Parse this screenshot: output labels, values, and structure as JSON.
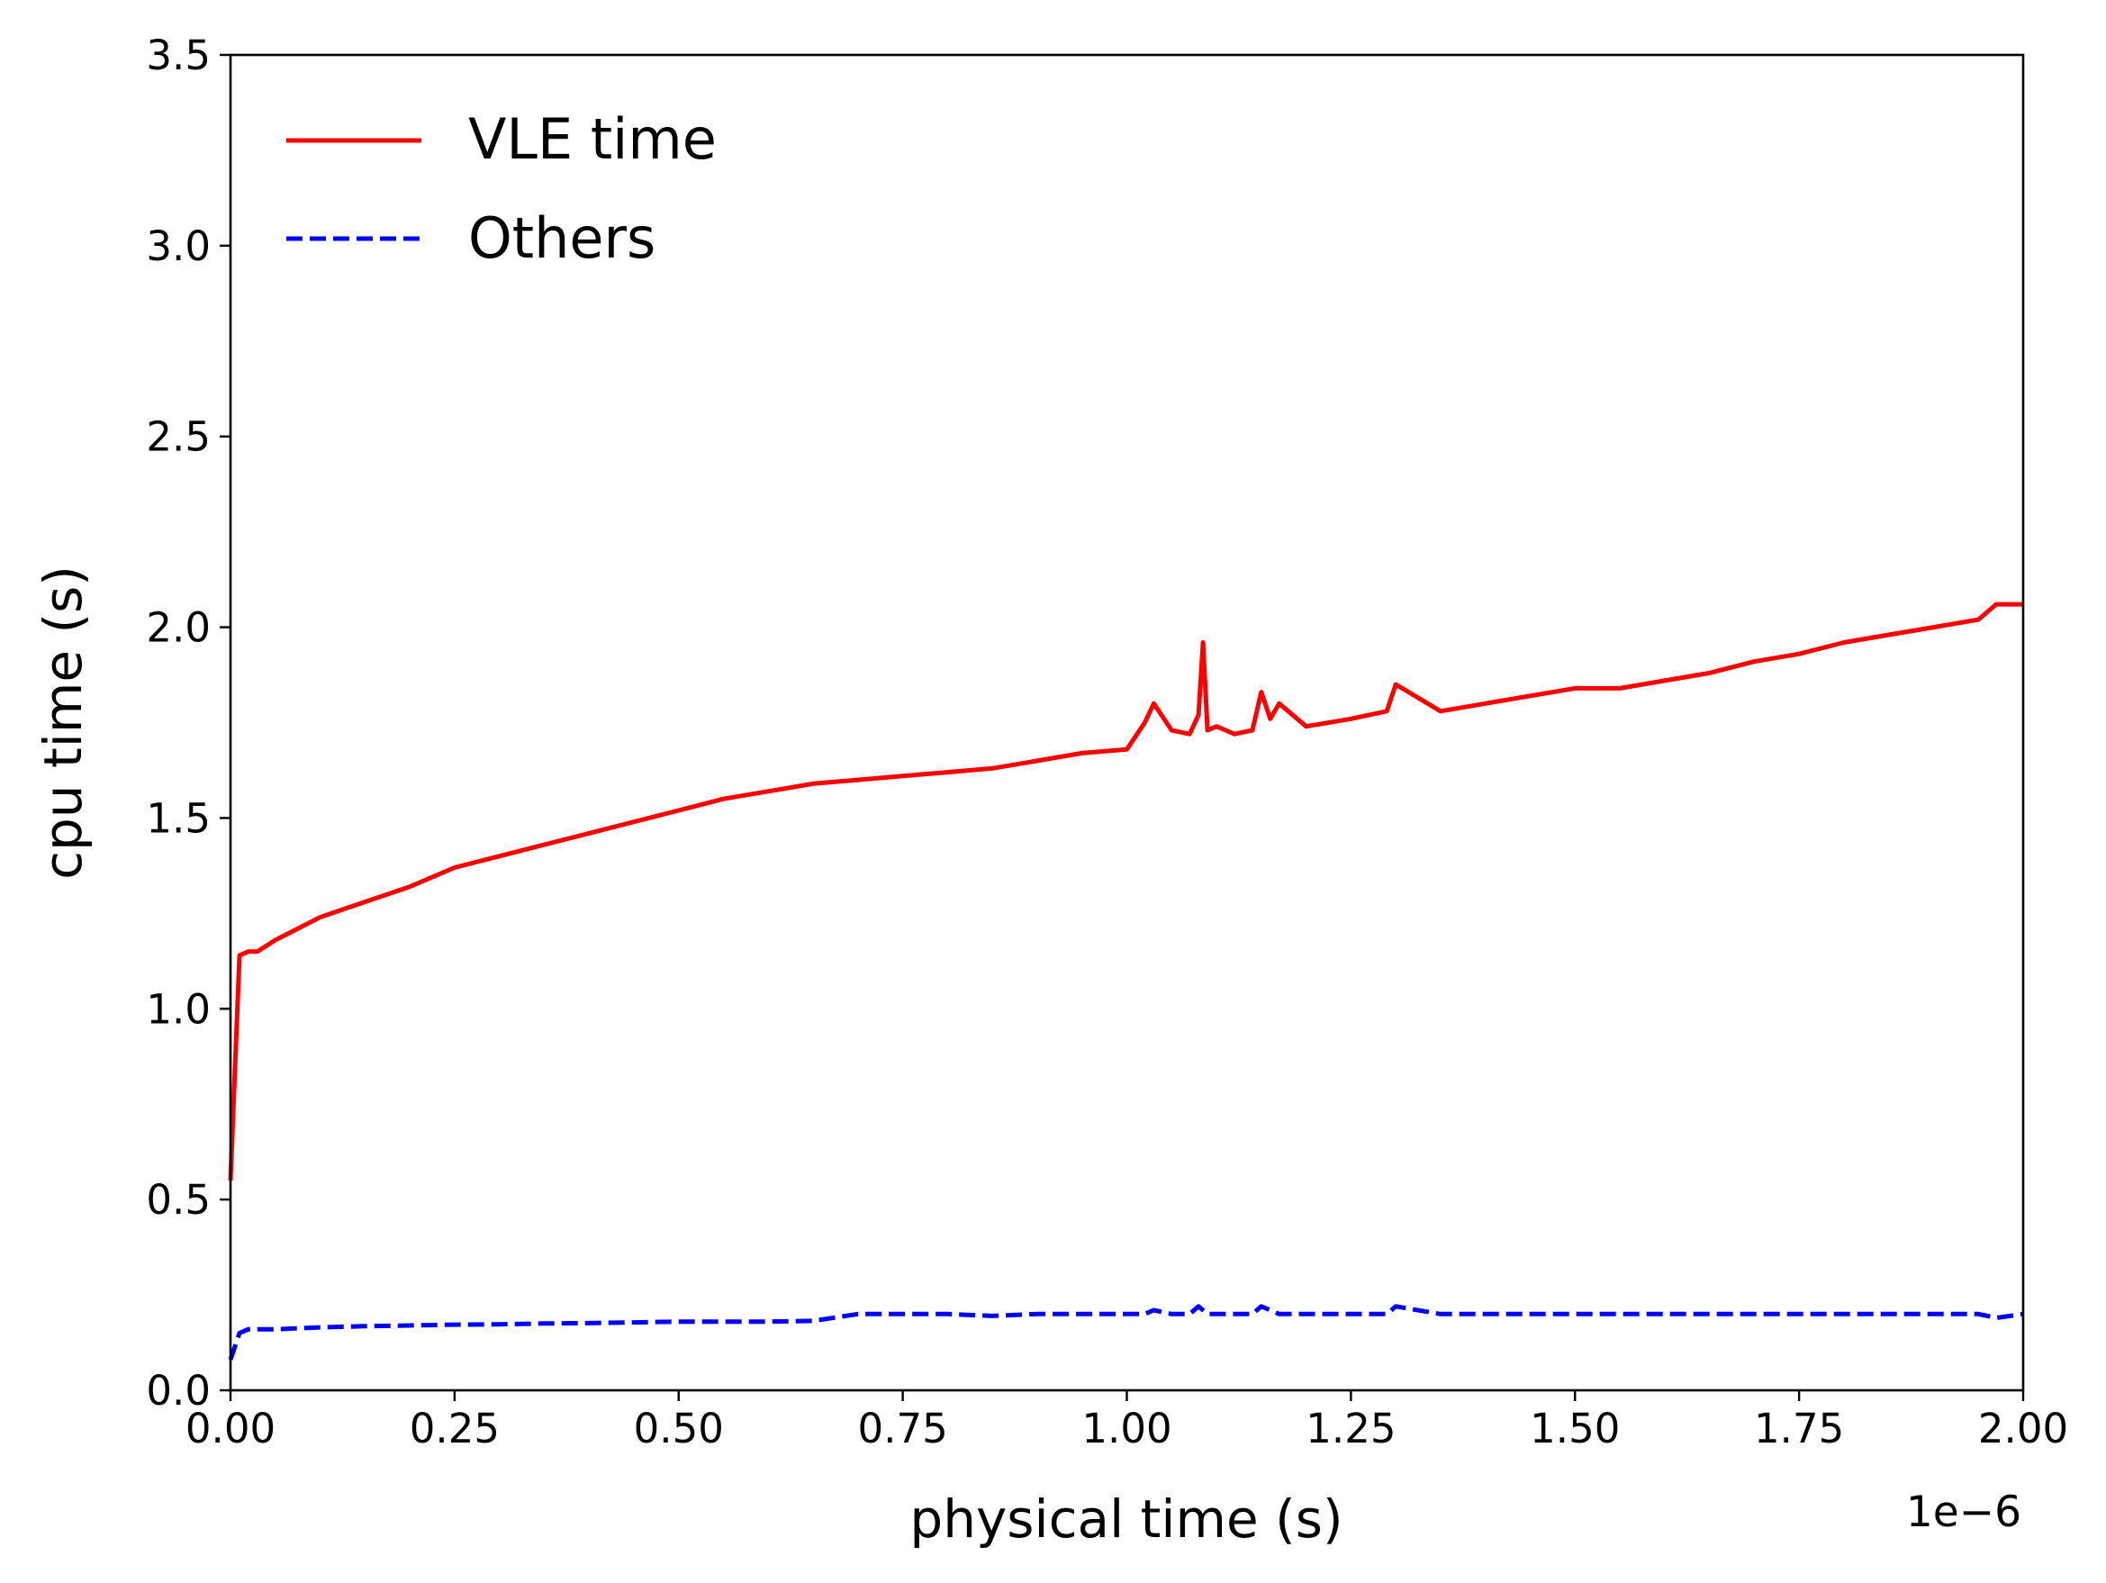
{
  "chart_data": {
    "type": "line",
    "title": "",
    "xlabel": "physical time (s)",
    "ylabel": "cpu time (s)",
    "x_offset_label": "1e−6",
    "xlim": [
      0.0,
      2.0
    ],
    "ylim": [
      0.0,
      3.5
    ],
    "xticks": [
      "0.00",
      "0.25",
      "0.50",
      "0.75",
      "1.00",
      "1.25",
      "1.50",
      "1.75",
      "2.00"
    ],
    "yticks": [
      "0.0",
      "0.5",
      "1.0",
      "1.5",
      "2.0",
      "2.5",
      "3.0",
      "3.5"
    ],
    "grid": false,
    "legend_position": "top-left",
    "x": [
      0.0,
      0.01,
      0.02,
      0.03,
      0.05,
      0.1,
      0.15,
      0.2,
      0.25,
      0.3,
      0.35,
      0.4,
      0.45,
      0.5,
      0.55,
      0.6,
      0.65,
      0.7,
      0.75,
      0.8,
      0.85,
      0.9,
      0.95,
      1.0,
      1.02,
      1.03,
      1.05,
      1.07,
      1.08,
      1.085,
      1.09,
      1.1,
      1.12,
      1.14,
      1.15,
      1.16,
      1.17,
      1.2,
      1.25,
      1.29,
      1.3,
      1.35,
      1.4,
      1.45,
      1.5,
      1.55,
      1.6,
      1.65,
      1.7,
      1.75,
      1.8,
      1.85,
      1.9,
      1.95,
      1.97,
      2.0
    ],
    "series": [
      {
        "name": "VLE time",
        "color": "#ff0000",
        "style": "solid",
        "values": [
          0.55,
          1.14,
          1.15,
          1.15,
          1.18,
          1.24,
          1.28,
          1.32,
          1.37,
          1.4,
          1.43,
          1.46,
          1.49,
          1.52,
          1.55,
          1.57,
          1.59,
          1.6,
          1.61,
          1.62,
          1.63,
          1.65,
          1.67,
          1.68,
          1.75,
          1.8,
          1.73,
          1.72,
          1.77,
          1.96,
          1.73,
          1.74,
          1.72,
          1.73,
          1.83,
          1.76,
          1.8,
          1.74,
          1.76,
          1.78,
          1.85,
          1.78,
          1.8,
          1.82,
          1.84,
          1.84,
          1.86,
          1.88,
          1.91,
          1.93,
          1.96,
          1.98,
          2.0,
          2.02,
          2.06,
          2.06
        ]
      },
      {
        "name": "Others",
        "color": "#0000ff",
        "style": "dashed",
        "values": [
          0.08,
          0.15,
          0.16,
          0.16,
          0.16,
          0.165,
          0.168,
          0.17,
          0.172,
          0.173,
          0.175,
          0.176,
          0.178,
          0.18,
          0.18,
          0.18,
          0.182,
          0.2,
          0.2,
          0.2,
          0.195,
          0.2,
          0.2,
          0.2,
          0.2,
          0.21,
          0.2,
          0.2,
          0.22,
          0.21,
          0.2,
          0.2,
          0.2,
          0.2,
          0.22,
          0.21,
          0.2,
          0.2,
          0.2,
          0.2,
          0.22,
          0.2,
          0.2,
          0.2,
          0.2,
          0.2,
          0.2,
          0.2,
          0.2,
          0.2,
          0.2,
          0.2,
          0.2,
          0.2,
          0.19,
          0.2
        ]
      }
    ]
  }
}
